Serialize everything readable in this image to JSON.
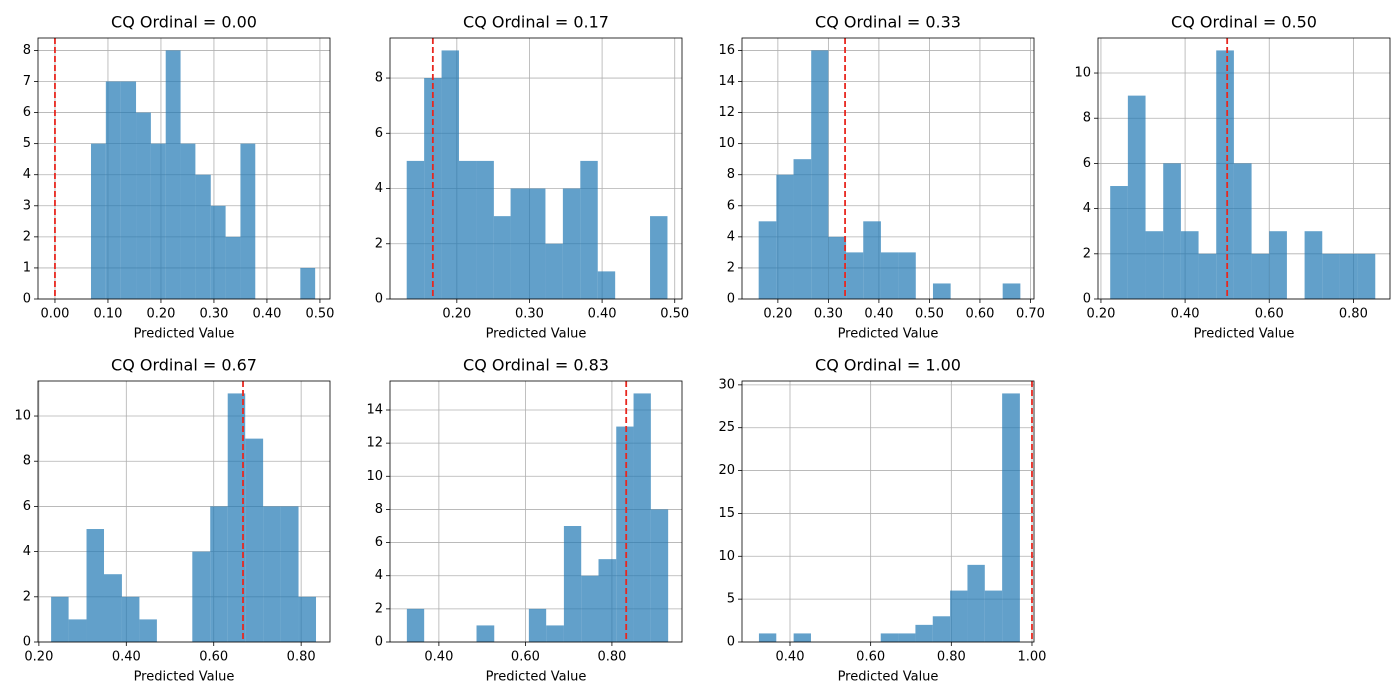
{
  "chart_data": [
    {
      "type": "histogram",
      "title": "CQ Ordinal = 0.00",
      "xlabel": "Predicted Value",
      "color": "#1f77b4",
      "grid": true,
      "bins": [
        0.068,
        0.096,
        0.124,
        0.153,
        0.181,
        0.209,
        0.237,
        0.265,
        0.294,
        0.322,
        0.35,
        0.378,
        0.406,
        0.435,
        0.463,
        0.491
      ],
      "values": [
        5,
        7,
        7,
        6,
        5,
        8,
        5,
        4,
        3,
        2,
        5,
        0,
        0,
        0,
        1
      ],
      "vline": 0.0,
      "vline_color": "#e8271f",
      "xlim": [
        -0.032,
        0.519
      ],
      "ylim": [
        0,
        8.4
      ],
      "xticks": [
        {
          "value": 0,
          "label": "0.00"
        },
        {
          "value": 0.1,
          "label": "0.10"
        },
        {
          "value": 0.2,
          "label": "0.20"
        },
        {
          "value": 0.3,
          "label": "0.30"
        },
        {
          "value": 0.4,
          "label": "0.40"
        },
        {
          "value": 0.5,
          "label": "0.50"
        }
      ],
      "yticks": [
        0,
        1,
        2,
        3,
        4,
        5,
        6,
        7,
        8
      ]
    },
    {
      "type": "histogram",
      "title": "CQ Ordinal = 0.17",
      "xlabel": "Predicted Value",
      "color": "#1f77b4",
      "grid": true,
      "bins": [
        0.131,
        0.155,
        0.179,
        0.203,
        0.227,
        0.251,
        0.274,
        0.298,
        0.322,
        0.346,
        0.37,
        0.394,
        0.418,
        0.442,
        0.466,
        0.49
      ],
      "values": [
        5,
        8,
        9,
        5,
        5,
        3,
        4,
        4,
        2,
        4,
        5,
        1,
        0,
        0,
        3
      ],
      "vline": 0.167,
      "vline_color": "#e8271f",
      "xlim": [
        0.108,
        0.51
      ],
      "ylim": [
        0,
        9.45
      ],
      "xticks": [
        {
          "value": 0.2,
          "label": "0.20"
        },
        {
          "value": 0.3,
          "label": "0.30"
        },
        {
          "value": 0.4,
          "label": "0.40"
        },
        {
          "value": 0.5,
          "label": "0.50"
        }
      ],
      "yticks": [
        0,
        2,
        4,
        6,
        8
      ]
    },
    {
      "type": "histogram",
      "title": "CQ Ordinal = 0.33",
      "xlabel": "Predicted Value",
      "color": "#1f77b4",
      "grid": true,
      "bins": [
        0.162,
        0.197,
        0.231,
        0.266,
        0.3,
        0.335,
        0.369,
        0.404,
        0.438,
        0.473,
        0.507,
        0.542,
        0.576,
        0.611,
        0.645,
        0.68
      ],
      "values": [
        5,
        8,
        9,
        16,
        4,
        3,
        5,
        3,
        3,
        0,
        1,
        0,
        0,
        0,
        1
      ],
      "vline": 0.333,
      "vline_color": "#e8271f",
      "xlim": [
        0.129,
        0.707
      ],
      "ylim": [
        0,
        16.8
      ],
      "xticks": [
        {
          "value": 0.2,
          "label": "0.20"
        },
        {
          "value": 0.3,
          "label": "0.30"
        },
        {
          "value": 0.4,
          "label": "0.40"
        },
        {
          "value": 0.5,
          "label": "0.50"
        },
        {
          "value": 0.6,
          "label": "0.60"
        },
        {
          "value": 0.7,
          "label": "0.70"
        }
      ],
      "yticks": [
        0,
        2,
        4,
        6,
        8,
        10,
        12,
        14,
        16
      ]
    },
    {
      "type": "histogram",
      "title": "CQ Ordinal = 0.50",
      "xlabel": "Predicted Value",
      "color": "#1f77b4",
      "grid": true,
      "bins": [
        0.222,
        0.264,
        0.306,
        0.348,
        0.39,
        0.432,
        0.474,
        0.516,
        0.558,
        0.6,
        0.642,
        0.684,
        0.726,
        0.768,
        0.81,
        0.852
      ],
      "values": [
        5,
        9,
        3,
        6,
        3,
        2,
        11,
        6,
        2,
        3,
        0,
        3,
        2,
        2,
        2
      ],
      "vline": 0.5,
      "vline_color": "#e8271f",
      "xlim": [
        0.193,
        0.887
      ],
      "ylim": [
        0,
        11.55
      ],
      "xticks": [
        {
          "value": 0.2,
          "label": "0.20"
        },
        {
          "value": 0.4,
          "label": "0.40"
        },
        {
          "value": 0.6,
          "label": "0.60"
        },
        {
          "value": 0.8,
          "label": "0.80"
        }
      ],
      "yticks": [
        0,
        2,
        4,
        6,
        8,
        10
      ]
    },
    {
      "type": "histogram",
      "title": "CQ Ordinal = 0.67",
      "xlabel": "Predicted Value",
      "color": "#1f77b4",
      "grid": true,
      "bins": [
        0.228,
        0.268,
        0.309,
        0.349,
        0.39,
        0.43,
        0.47,
        0.511,
        0.551,
        0.592,
        0.632,
        0.672,
        0.713,
        0.753,
        0.794,
        0.834
      ],
      "values": [
        2,
        1,
        5,
        3,
        2,
        1,
        0,
        0,
        4,
        6,
        11,
        9,
        6,
        6,
        2
      ],
      "vline": 0.667,
      "vline_color": "#e8271f",
      "xlim": [
        0.198,
        0.866
      ],
      "ylim": [
        0,
        11.55
      ],
      "xticks": [
        {
          "value": 0.2,
          "label": "0.20"
        },
        {
          "value": 0.4,
          "label": "0.40"
        },
        {
          "value": 0.6,
          "label": "0.60"
        },
        {
          "value": 0.8,
          "label": "0.80"
        }
      ],
      "yticks": [
        0,
        2,
        4,
        6,
        8,
        10
      ]
    },
    {
      "type": "histogram",
      "title": "CQ Ordinal = 0.83",
      "xlabel": "Predicted Value",
      "color": "#1f77b4",
      "grid": true,
      "bins": [
        0.326,
        0.366,
        0.407,
        0.447,
        0.487,
        0.528,
        0.568,
        0.608,
        0.648,
        0.689,
        0.729,
        0.769,
        0.81,
        0.85,
        0.89,
        0.93
      ],
      "values": [
        2,
        0,
        0,
        0,
        1,
        0,
        0,
        2,
        1,
        7,
        4,
        5,
        13,
        15,
        8
      ],
      "vline": 0.833,
      "vline_color": "#e8271f",
      "xlim": [
        0.287,
        0.962
      ],
      "ylim": [
        0,
        15.75
      ],
      "xticks": [
        {
          "value": 0.4,
          "label": "0.40"
        },
        {
          "value": 0.6,
          "label": "0.60"
        },
        {
          "value": 0.8,
          "label": "0.80"
        }
      ],
      "yticks": [
        0,
        2,
        4,
        6,
        8,
        10,
        12,
        14
      ]
    },
    {
      "type": "histogram",
      "title": "CQ Ordinal = 1.00",
      "xlabel": "Predicted Value",
      "color": "#1f77b4",
      "grid": true,
      "bins": [
        0.323,
        0.366,
        0.409,
        0.452,
        0.495,
        0.539,
        0.582,
        0.625,
        0.668,
        0.711,
        0.754,
        0.797,
        0.84,
        0.883,
        0.926,
        0.97
      ],
      "values": [
        1,
        0,
        1,
        0,
        0,
        0,
        0,
        1,
        1,
        2,
        3,
        6,
        9,
        6,
        29
      ],
      "vline": 1.0,
      "vline_color": "#e8271f",
      "xlim": [
        0.281,
        1.005
      ],
      "ylim": [
        0,
        30.45
      ],
      "xticks": [
        {
          "value": 0.4,
          "label": "0.40"
        },
        {
          "value": 0.6,
          "label": "0.60"
        },
        {
          "value": 0.8,
          "label": "0.80"
        },
        {
          "value": 1.0,
          "label": "1.00"
        }
      ],
      "yticks": [
        0,
        5,
        10,
        15,
        20,
        25,
        30
      ]
    }
  ]
}
